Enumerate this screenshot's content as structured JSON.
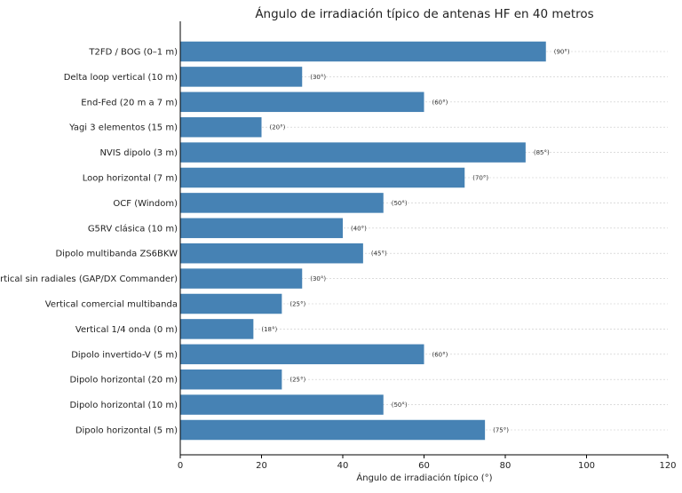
{
  "chart_data": {
    "type": "bar",
    "orientation": "horizontal",
    "title": "Ángulo de irradiación típico de antenas HF en 40 metros",
    "xlabel": "Ángulo de irradiación típico (°)",
    "ylabel": "",
    "xlim": [
      0,
      120
    ],
    "xticks": [
      0,
      20,
      40,
      60,
      80,
      100,
      120
    ],
    "grid": "x-dashed",
    "categories": [
      "T2FD / BOG (0–1 m)",
      "Delta loop vertical (10 m)",
      "End-Fed (20 m a 7 m)",
      "Yagi 3 elementos (15 m)",
      "NVIS dipolo (3 m)",
      "Loop horizontal (7 m)",
      "OCF (Windom)",
      "G5RV clásica (10 m)",
      "Dipolo multibanda ZS6BKW",
      "Vertical sin radiales (GAP/DX Commander)",
      "Vertical comercial multibanda",
      "Vertical 1/4 onda (0 m)",
      "Dipolo invertido-V (5 m)",
      "Dipolo horizontal (20 m)",
      "Dipolo horizontal (10 m)",
      "Dipolo horizontal (5 m)"
    ],
    "values": [
      90,
      30,
      60,
      20,
      85,
      70,
      50,
      40,
      45,
      30,
      25,
      18,
      60,
      25,
      50,
      75
    ],
    "value_labels": [
      "(90°)",
      "(30°)",
      "(60°)",
      "(20°)",
      "(85°)",
      "(70°)",
      "(50°)",
      "(40°)",
      "(45°)",
      "(30°)",
      "(25°)",
      "(18°)",
      "(60°)",
      "(25°)",
      "(50°)",
      "(75°)"
    ],
    "bar_color": "#4682b4",
    "grid_color": "#c8c8c8",
    "axis_color": "#000000"
  }
}
